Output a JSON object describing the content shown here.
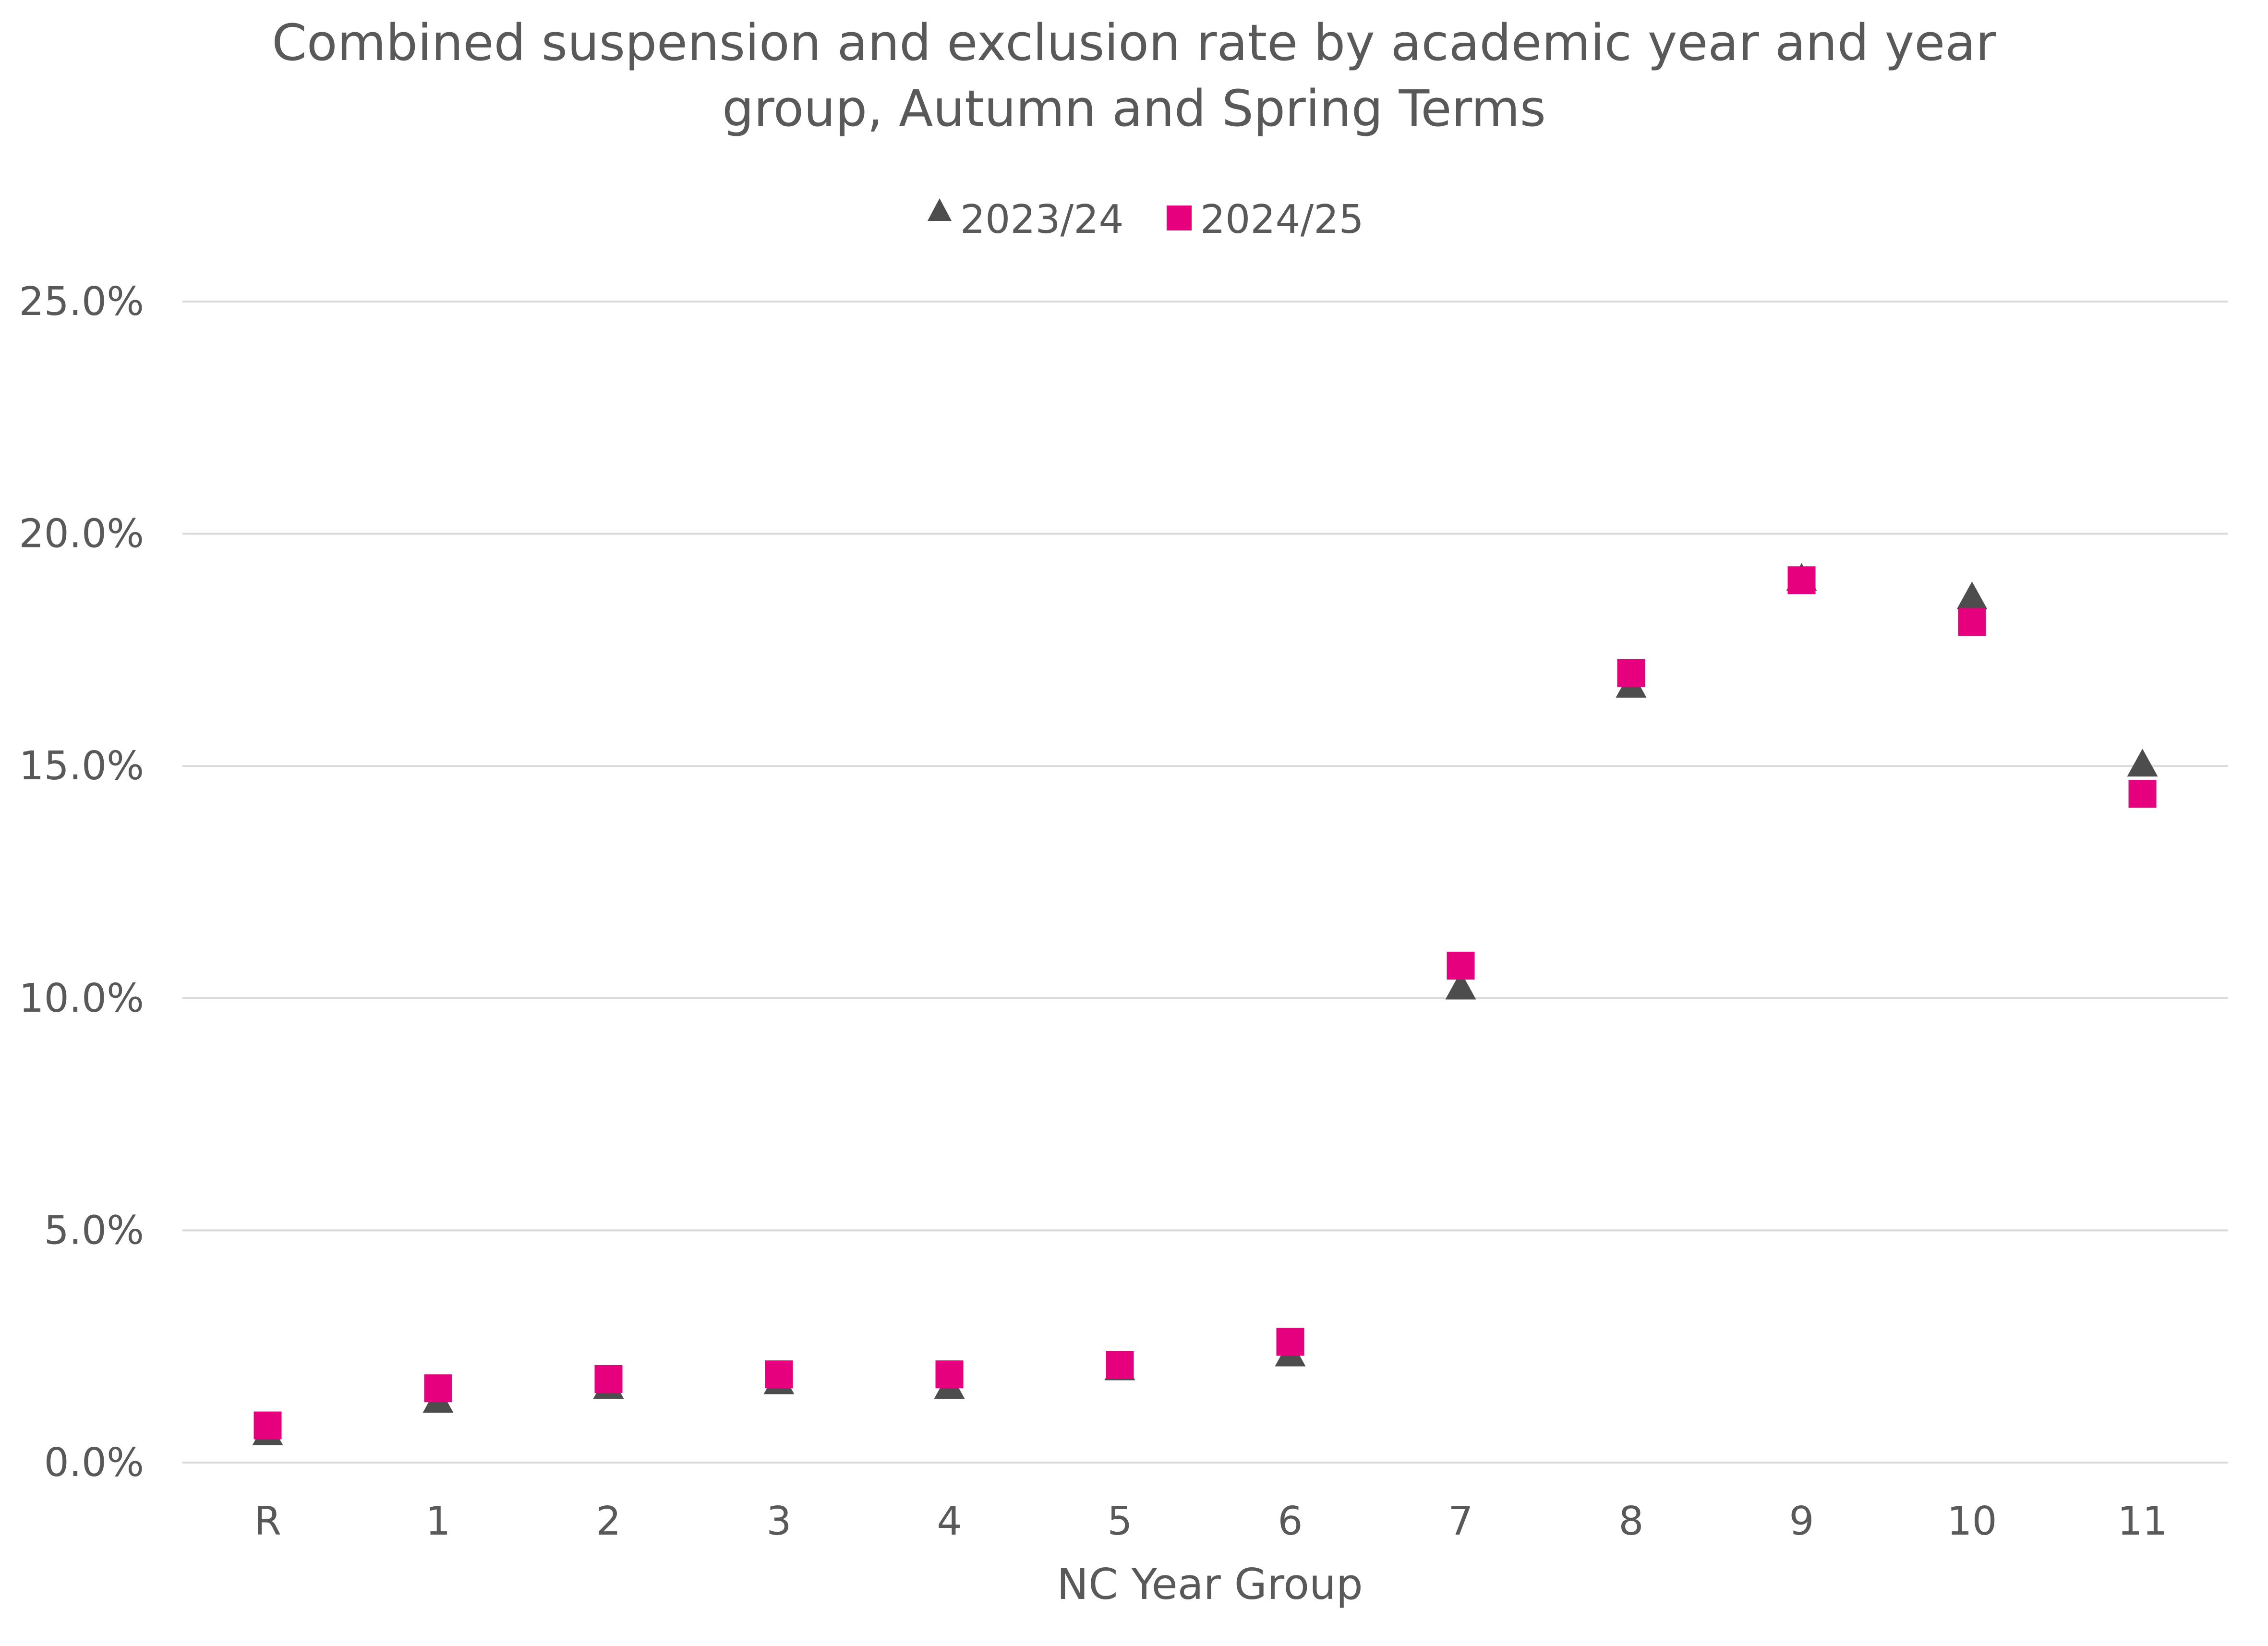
{
  "chart_data": {
    "type": "scatter",
    "title_lines": [
      "Combined suspension and exclusion rate by academic year and year",
      "group, Autumn and Spring Terms"
    ],
    "xlabel": "NC Year Group",
    "ylabel": "",
    "categories": [
      "R",
      "1",
      "2",
      "3",
      "4",
      "5",
      "6",
      "7",
      "8",
      "9",
      "10",
      "11"
    ],
    "ylim": [
      0,
      25
    ],
    "yticks": [
      0,
      5,
      10,
      15,
      20,
      25
    ],
    "ytick_labels": [
      "0.0%",
      "5.0%",
      "10.0%",
      "15.0%",
      "20.0%",
      "25.0%"
    ],
    "grid": true,
    "legend_position": "top",
    "series": [
      {
        "name": "2023/24",
        "marker": "triangle",
        "color": "#4d4d4d",
        "values": [
          0.6,
          1.3,
          1.6,
          1.7,
          1.6,
          2.0,
          2.3,
          10.2,
          16.7,
          19.0,
          18.6,
          15.0
        ]
      },
      {
        "name": "2024/25",
        "marker": "square",
        "color": "#e6007e",
        "values": [
          0.8,
          1.6,
          1.8,
          1.9,
          1.9,
          2.1,
          2.6,
          10.7,
          17.0,
          19.0,
          18.1,
          14.4
        ]
      }
    ]
  }
}
